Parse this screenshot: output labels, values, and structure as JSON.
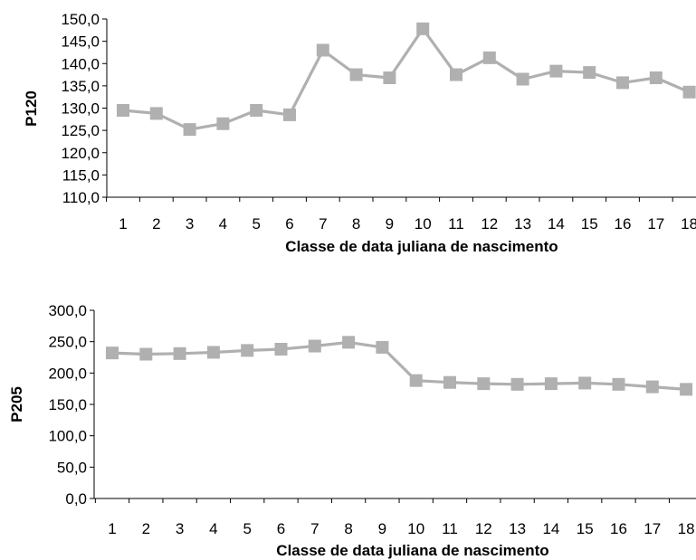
{
  "chart_data": [
    {
      "type": "line",
      "ylabel": "P120",
      "xlabel": "Classe de data juliana de nascimento",
      "categories": [
        "1",
        "2",
        "3",
        "4",
        "5",
        "6",
        "7",
        "8",
        "9",
        "10",
        "11",
        "12",
        "13",
        "14",
        "15",
        "16",
        "17",
        "18"
      ],
      "series": [
        {
          "values": [
            129.5,
            128.8,
            125.2,
            126.5,
            129.5,
            128.5,
            143.0,
            137.5,
            136.8,
            147.8,
            137.5,
            141.3,
            136.5,
            138.3,
            138.0,
            135.7,
            136.8,
            133.6
          ]
        }
      ],
      "ylim": [
        110,
        150
      ],
      "yticks": [
        "110,0",
        "115,0",
        "120,0",
        "125,0",
        "130,0",
        "135,0",
        "140,0",
        "145,0",
        "150,0"
      ],
      "grid": false,
      "color": "#b0b0b0"
    },
    {
      "type": "line",
      "ylabel": "P205",
      "xlabel": "Classe de data juliana de nascimento",
      "categories": [
        "1",
        "2",
        "3",
        "4",
        "5",
        "6",
        "7",
        "8",
        "9",
        "10",
        "11",
        "12",
        "13",
        "14",
        "15",
        "16",
        "17",
        "18"
      ],
      "series": [
        {
          "values": [
            232,
            230,
            231,
            233,
            236,
            238,
            243,
            249,
            241,
            188,
            185,
            183,
            182,
            183,
            184,
            182,
            178,
            174
          ]
        }
      ],
      "ylim": [
        0,
        300
      ],
      "yticks": [
        "0,0",
        "50,0",
        "100,0",
        "150,0",
        "200,0",
        "250,0",
        "300,0"
      ],
      "grid": false,
      "color": "#b0b0b0"
    }
  ]
}
